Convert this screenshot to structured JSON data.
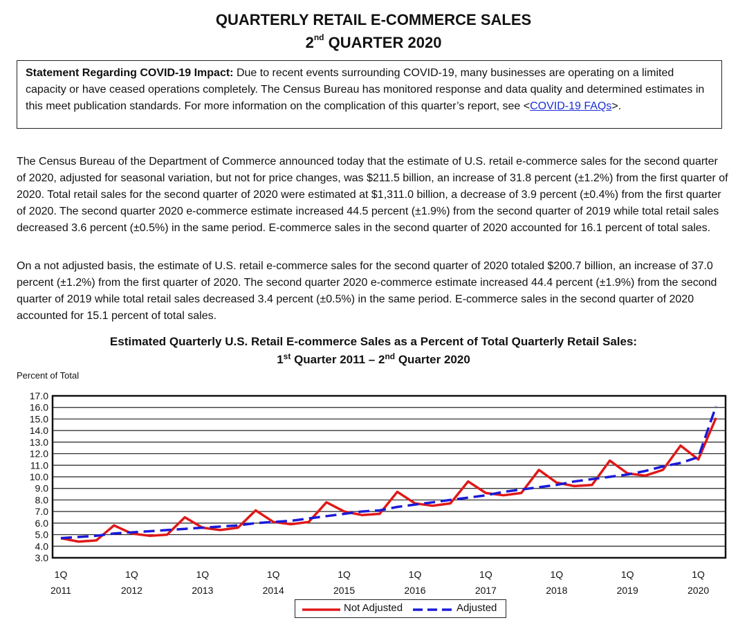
{
  "header": {
    "title_line1": "QUARTERLY RETAIL E-COMMERCE SALES",
    "title_line2_pre": "2",
    "title_line2_sup": "nd",
    "title_line2_post": " QUARTER 2020"
  },
  "covid_notice": {
    "lead": "Statement Regarding COVID-19 Impact:",
    "text": " Due to recent events surrounding COVID-19, many businesses are operating on a limited capacity or have ceased operations completely. The Census Bureau has monitored response and data quality and determined estimates in this meet publication standards. For more information on the complication of this quarter’s report, see ",
    "link_open": "<",
    "link_text": "COVID-19 FAQs",
    "link_close": ">."
  },
  "paragraphs": {
    "p1": "The Census Bureau of the Department of Commerce announced today that the estimate of U.S. retail e-commerce sales for the second quarter of 2020, adjusted for seasonal variation, but not for price changes, was $211.5 billion, an increase of 31.8 percent (±1.2%) from the first quarter of 2020.  Total retail sales for the second quarter of 2020 were estimated at $1,311.0 billion, a decrease of 3.9 percent (±0.4%) from the first quarter of 2020.  The second quarter 2020 e-commerce estimate increased 44.5 percent (±1.9%) from the second quarter of 2019 while total retail sales decreased 3.6 percent (±0.5%) in the same period. E-commerce sales in the second quarter of 2020 accounted for 16.1 percent of total sales.",
    "p2": "On a not adjusted basis, the estimate of U.S. retail e-commerce sales for the second quarter of 2020 totaled $200.7 billion, an increase of 37.0 percent (±1.2%) from the first quarter of 2020.  The second quarter 2020 e-commerce estimate increased 44.4 percent (±1.9%) from the second quarter of 2019 while total retail sales decreased 3.4 percent (±0.5%) in the same period. E-commerce sales in the second quarter of 2020 accounted for 15.1 percent of total sales."
  },
  "chart_data": {
    "type": "line",
    "title_line1": "Estimated Quarterly U.S. Retail E-commerce Sales as a Percent of Total Quarterly Retail Sales:",
    "title_line2_parts": [
      "1",
      "st",
      " Quarter 2011 – 2",
      "nd",
      " Quarter 2020"
    ],
    "ylabel": "Percent of Total",
    "ylim": [
      3.0,
      17.0
    ],
    "yticks": [
      "3.0",
      "4.0",
      "5.0",
      "6.0",
      "7.0",
      "8.0",
      "9.0",
      "10.0",
      "11.0",
      "12.0",
      "13.0",
      "14.0",
      "15.0",
      "16.0",
      "17.0"
    ],
    "xtick_labels": [
      {
        "q": "1Q",
        "year": "2011"
      },
      {
        "q": "1Q",
        "year": "2012"
      },
      {
        "q": "1Q",
        "year": "2013"
      },
      {
        "q": "1Q",
        "year": "2014"
      },
      {
        "q": "1Q",
        "year": "2015"
      },
      {
        "q": "1Q",
        "year": "2016"
      },
      {
        "q": "1Q",
        "year": "2017"
      },
      {
        "q": "1Q",
        "year": "2018"
      },
      {
        "q": "1Q",
        "year": "2019"
      },
      {
        "q": "1Q",
        "year": "2020"
      }
    ],
    "x": [
      "2011Q1",
      "2011Q2",
      "2011Q3",
      "2011Q4",
      "2012Q1",
      "2012Q2",
      "2012Q3",
      "2012Q4",
      "2013Q1",
      "2013Q2",
      "2013Q3",
      "2013Q4",
      "2014Q1",
      "2014Q2",
      "2014Q3",
      "2014Q4",
      "2015Q1",
      "2015Q2",
      "2015Q3",
      "2015Q4",
      "2016Q1",
      "2016Q2",
      "2016Q3",
      "2016Q4",
      "2017Q1",
      "2017Q2",
      "2017Q3",
      "2017Q4",
      "2018Q1",
      "2018Q2",
      "2018Q3",
      "2018Q4",
      "2019Q1",
      "2019Q2",
      "2019Q3",
      "2019Q4",
      "2020Q1",
      "2020Q2"
    ],
    "series": [
      {
        "name": "Not Adjusted",
        "color": "#e01818",
        "dash": "solid",
        "values": [
          4.7,
          4.4,
          4.5,
          5.8,
          5.1,
          4.9,
          5.0,
          6.5,
          5.6,
          5.4,
          5.6,
          7.1,
          6.1,
          5.9,
          6.1,
          7.8,
          7.0,
          6.7,
          6.8,
          8.7,
          7.7,
          7.5,
          7.7,
          9.6,
          8.6,
          8.4,
          8.6,
          10.6,
          9.5,
          9.2,
          9.3,
          11.4,
          10.3,
          10.1,
          10.6,
          12.7,
          11.5,
          15.1
        ]
      },
      {
        "name": "Adjusted",
        "color": "#1a1ad8",
        "dash": "dashed",
        "values": [
          4.7,
          4.8,
          4.9,
          5.1,
          5.2,
          5.3,
          5.4,
          5.5,
          5.6,
          5.7,
          5.8,
          6.0,
          6.1,
          6.2,
          6.4,
          6.6,
          6.8,
          7.0,
          7.1,
          7.4,
          7.6,
          7.8,
          8.0,
          8.2,
          8.4,
          8.7,
          8.9,
          9.1,
          9.3,
          9.6,
          9.8,
          10.0,
          10.2,
          10.5,
          10.9,
          11.2,
          11.7,
          16.1
        ]
      }
    ],
    "grid": true,
    "legend": "bottom-center"
  }
}
